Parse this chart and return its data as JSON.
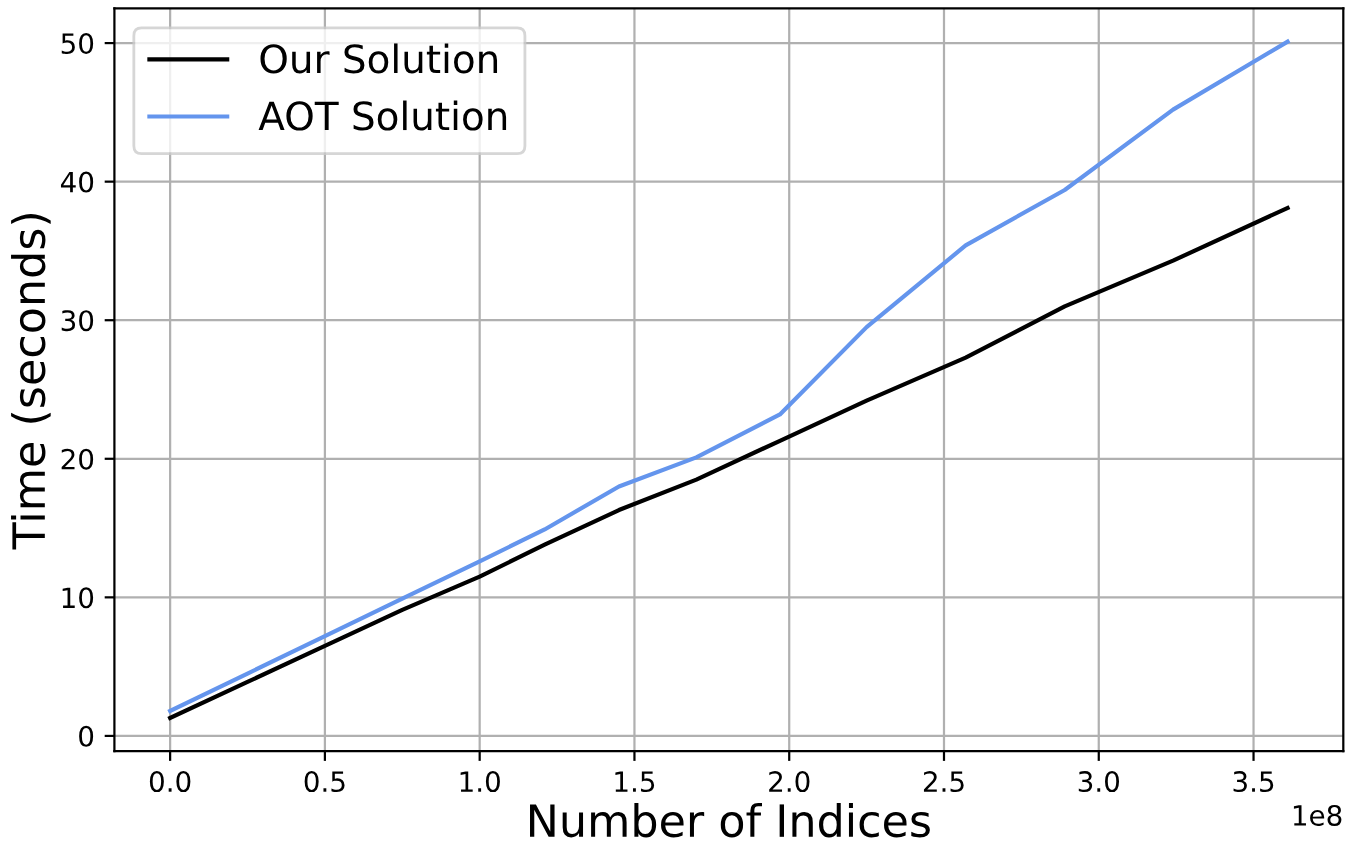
{
  "chart_data": {
    "type": "line",
    "xlabel": "Number of Indices",
    "ylabel": "Time (seconds)",
    "series": [
      {
        "name": "Our Solution",
        "color": "#000000",
        "x": [
          0,
          0.25,
          0.5,
          0.75,
          1.0,
          1.21,
          1.45,
          1.7,
          1.97,
          2.25,
          2.57,
          2.89,
          3.24,
          3.61
        ],
        "values": [
          1.3,
          3.9,
          6.5,
          9.1,
          11.5,
          13.8,
          16.3,
          18.5,
          21.3,
          24.2,
          27.3,
          31.0,
          34.3,
          38.1
        ]
      },
      {
        "name": "AOT Solution",
        "color": "#6495ed",
        "x": [
          0,
          0.25,
          0.5,
          0.75,
          1.0,
          1.21,
          1.45,
          1.7,
          1.97,
          2.25,
          2.57,
          2.89,
          3.24,
          3.61
        ],
        "values": [
          1.8,
          4.5,
          7.2,
          9.9,
          12.6,
          14.9,
          18.0,
          20.1,
          23.2,
          29.5,
          35.4,
          39.4,
          45.2,
          50.1
        ]
      }
    ],
    "xlim": [
      -0.18,
      3.79
    ],
    "ylim": [
      -1.1,
      52.5
    ],
    "xticks": [
      {
        "value": 0,
        "label": "0.0"
      },
      {
        "value": 0.5,
        "label": "0.5"
      },
      {
        "value": 1.0,
        "label": "1.0"
      },
      {
        "value": 1.5,
        "label": "1.5"
      },
      {
        "value": 2.0,
        "label": "2.0"
      },
      {
        "value": 2.5,
        "label": "2.5"
      },
      {
        "value": 3.0,
        "label": "3.0"
      },
      {
        "value": 3.5,
        "label": "3.5"
      }
    ],
    "yticks": [
      0,
      10,
      20,
      30,
      40,
      50
    ],
    "annotations": [
      "1e8"
    ],
    "grid": true,
    "legend": "top left",
    "marker": "none",
    "line_style": "solid"
  }
}
